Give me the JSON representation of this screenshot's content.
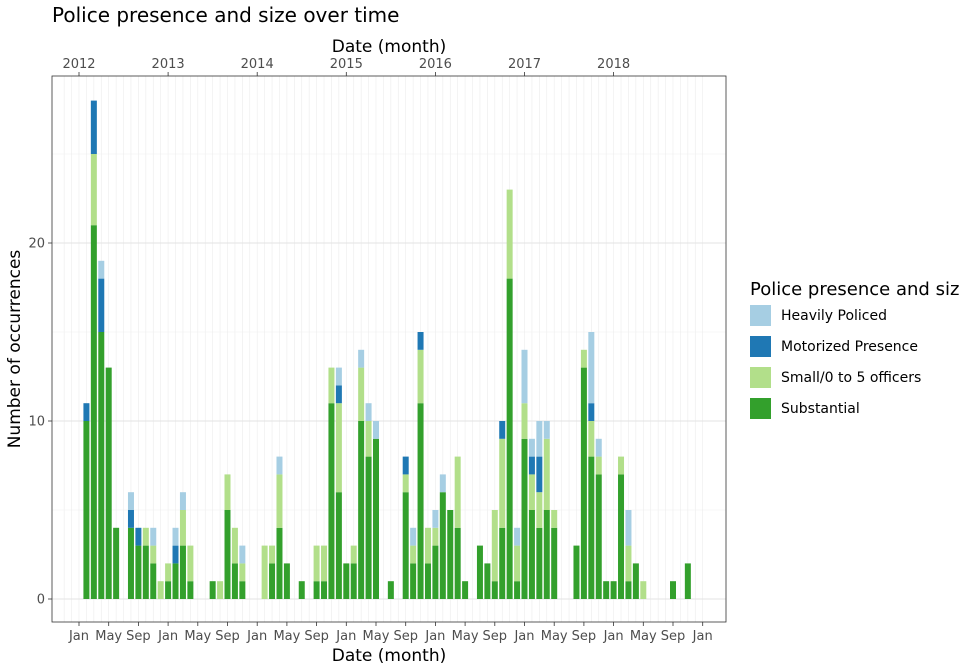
{
  "chart_data": {
    "type": "bar",
    "stacked": true,
    "title": "Police presence and size over time",
    "xlabel": "Date (month)",
    "xlabel_top": "Date (month)",
    "ylabel": "Number of occurrences",
    "ylim": [
      0,
      28
    ],
    "yticks": [
      0,
      10,
      20
    ],
    "x_range": [
      "2011-11",
      "2019-01"
    ],
    "top_axis_ticks": [
      {
        "month": "2012-01",
        "label": "2012"
      },
      {
        "month": "2013-01",
        "label": "2013"
      },
      {
        "month": "2014-01",
        "label": "2014"
      },
      {
        "month": "2015-01",
        "label": "2015"
      },
      {
        "month": "2016-01",
        "label": "2016"
      },
      {
        "month": "2017-01",
        "label": "2017"
      },
      {
        "month": "2018-01",
        "label": "2018"
      }
    ],
    "bottom_axis_ticks": [
      {
        "month": "2012-01",
        "label": "Jan"
      },
      {
        "month": "2012-05",
        "label": "May"
      },
      {
        "month": "2012-09",
        "label": "Sep"
      },
      {
        "month": "2013-01",
        "label": "Jan"
      },
      {
        "month": "2013-05",
        "label": "May"
      },
      {
        "month": "2013-09",
        "label": "Sep"
      },
      {
        "month": "2014-01",
        "label": "Jan"
      },
      {
        "month": "2014-05",
        "label": "May"
      },
      {
        "month": "2014-09",
        "label": "Sep"
      },
      {
        "month": "2015-01",
        "label": "Jan"
      },
      {
        "month": "2015-05",
        "label": "May"
      },
      {
        "month": "2015-09",
        "label": "Sep"
      },
      {
        "month": "2016-01",
        "label": "Jan"
      },
      {
        "month": "2016-05",
        "label": "May"
      },
      {
        "month": "2016-09",
        "label": "Sep"
      },
      {
        "month": "2017-01",
        "label": "Jan"
      },
      {
        "month": "2017-05",
        "label": "May"
      },
      {
        "month": "2017-09",
        "label": "Sep"
      },
      {
        "month": "2018-01",
        "label": "Jan"
      },
      {
        "month": "2018-05",
        "label": "May"
      },
      {
        "month": "2018-09",
        "label": "Sep"
      },
      {
        "month": "2019-01",
        "label": "Jan"
      }
    ],
    "legend": {
      "title": "Police presence and size",
      "position": "right"
    },
    "grid": true,
    "series": [
      {
        "name": "Heavily Policed",
        "color": "#A6CEE3"
      },
      {
        "name": "Motorized Presence",
        "color": "#1F78B4"
      },
      {
        "name": "Small/0 to 5 officers",
        "color": "#B2DF8A"
      },
      {
        "name": "Substantial",
        "color": "#33A02C"
      }
    ],
    "data": [
      {
        "x": "2012-02",
        "substantial": 10,
        "small": 0,
        "motorized": 1,
        "heavily": 0
      },
      {
        "x": "2012-03",
        "substantial": 21,
        "small": 4,
        "motorized": 3,
        "heavily": 0
      },
      {
        "x": "2012-04",
        "substantial": 15,
        "small": 0,
        "motorized": 3,
        "heavily": 1
      },
      {
        "x": "2012-05",
        "substantial": 13,
        "small": 0,
        "motorized": 0,
        "heavily": 0
      },
      {
        "x": "2012-06",
        "substantial": 4,
        "small": 0,
        "motorized": 0,
        "heavily": 0
      },
      {
        "x": "2012-08",
        "substantial": 4,
        "small": 0,
        "motorized": 1,
        "heavily": 1
      },
      {
        "x": "2012-09",
        "substantial": 3,
        "small": 0,
        "motorized": 1,
        "heavily": 0
      },
      {
        "x": "2012-10",
        "substantial": 3,
        "small": 1,
        "motorized": 0,
        "heavily": 0
      },
      {
        "x": "2012-11",
        "substantial": 2,
        "small": 1,
        "motorized": 0,
        "heavily": 1
      },
      {
        "x": "2012-12",
        "substantial": 0,
        "small": 1,
        "motorized": 0,
        "heavily": 0
      },
      {
        "x": "2013-01",
        "substantial": 1,
        "small": 1,
        "motorized": 0,
        "heavily": 0
      },
      {
        "x": "2013-02",
        "substantial": 2,
        "small": 0,
        "motorized": 1,
        "heavily": 1
      },
      {
        "x": "2013-03",
        "substantial": 3,
        "small": 2,
        "motorized": 0,
        "heavily": 1
      },
      {
        "x": "2013-04",
        "substantial": 1,
        "small": 2,
        "motorized": 0,
        "heavily": 0
      },
      {
        "x": "2013-07",
        "substantial": 1,
        "small": 0,
        "motorized": 0,
        "heavily": 0
      },
      {
        "x": "2013-08",
        "substantial": 0,
        "small": 1,
        "motorized": 0,
        "heavily": 0
      },
      {
        "x": "2013-09",
        "substantial": 5,
        "small": 2,
        "motorized": 0,
        "heavily": 0
      },
      {
        "x": "2013-10",
        "substantial": 2,
        "small": 2,
        "motorized": 0,
        "heavily": 0
      },
      {
        "x": "2013-11",
        "substantial": 1,
        "small": 1,
        "motorized": 0,
        "heavily": 1
      },
      {
        "x": "2014-02",
        "substantial": 0,
        "small": 3,
        "motorized": 0,
        "heavily": 0
      },
      {
        "x": "2014-03",
        "substantial": 2,
        "small": 1,
        "motorized": 0,
        "heavily": 0
      },
      {
        "x": "2014-04",
        "substantial": 4,
        "small": 3,
        "motorized": 0,
        "heavily": 1
      },
      {
        "x": "2014-05",
        "substantial": 2,
        "small": 0,
        "motorized": 0,
        "heavily": 0
      },
      {
        "x": "2014-07",
        "substantial": 1,
        "small": 0,
        "motorized": 0,
        "heavily": 0
      },
      {
        "x": "2014-09",
        "substantial": 1,
        "small": 2,
        "motorized": 0,
        "heavily": 0
      },
      {
        "x": "2014-10",
        "substantial": 1,
        "small": 2,
        "motorized": 0,
        "heavily": 0
      },
      {
        "x": "2014-11",
        "substantial": 11,
        "small": 2,
        "motorized": 0,
        "heavily": 0
      },
      {
        "x": "2014-12",
        "substantial": 6,
        "small": 5,
        "motorized": 1,
        "heavily": 1
      },
      {
        "x": "2015-01",
        "substantial": 2,
        "small": 0,
        "motorized": 0,
        "heavily": 0
      },
      {
        "x": "2015-02",
        "substantial": 2,
        "small": 1,
        "motorized": 0,
        "heavily": 0
      },
      {
        "x": "2015-03",
        "substantial": 10,
        "small": 3,
        "motorized": 0,
        "heavily": 1
      },
      {
        "x": "2015-04",
        "substantial": 8,
        "small": 2,
        "motorized": 0,
        "heavily": 1
      },
      {
        "x": "2015-05",
        "substantial": 9,
        "small": 0,
        "motorized": 0,
        "heavily": 1
      },
      {
        "x": "2015-07",
        "substantial": 1,
        "small": 0,
        "motorized": 0,
        "heavily": 0
      },
      {
        "x": "2015-09",
        "substantial": 6,
        "small": 1,
        "motorized": 1,
        "heavily": 0
      },
      {
        "x": "2015-10",
        "substantial": 2,
        "small": 1,
        "motorized": 0,
        "heavily": 1
      },
      {
        "x": "2015-11",
        "substantial": 11,
        "small": 3,
        "motorized": 1,
        "heavily": 0
      },
      {
        "x": "2015-12",
        "substantial": 2,
        "small": 2,
        "motorized": 0,
        "heavily": 0
      },
      {
        "x": "2016-01",
        "substantial": 3,
        "small": 1,
        "motorized": 0,
        "heavily": 1
      },
      {
        "x": "2016-02",
        "substantial": 6,
        "small": 0,
        "motorized": 0,
        "heavily": 1
      },
      {
        "x": "2016-03",
        "substantial": 5,
        "small": 0,
        "motorized": 0,
        "heavily": 0
      },
      {
        "x": "2016-04",
        "substantial": 4,
        "small": 4,
        "motorized": 0,
        "heavily": 0
      },
      {
        "x": "2016-05",
        "substantial": 1,
        "small": 0,
        "motorized": 0,
        "heavily": 0
      },
      {
        "x": "2016-07",
        "substantial": 3,
        "small": 0,
        "motorized": 0,
        "heavily": 0
      },
      {
        "x": "2016-08",
        "substantial": 2,
        "small": 0,
        "motorized": 0,
        "heavily": 0
      },
      {
        "x": "2016-09",
        "substantial": 1,
        "small": 4,
        "motorized": 0,
        "heavily": 0
      },
      {
        "x": "2016-10",
        "substantial": 4,
        "small": 5,
        "motorized": 1,
        "heavily": 0
      },
      {
        "x": "2016-11",
        "substantial": 18,
        "small": 5,
        "motorized": 0,
        "heavily": 0
      },
      {
        "x": "2016-12",
        "substantial": 1,
        "small": 2,
        "motorized": 0,
        "heavily": 1
      },
      {
        "x": "2017-01",
        "substantial": 9,
        "small": 2,
        "motorized": 0,
        "heavily": 3
      },
      {
        "x": "2017-02",
        "substantial": 5,
        "small": 2,
        "motorized": 1,
        "heavily": 1
      },
      {
        "x": "2017-03",
        "substantial": 4,
        "small": 2,
        "motorized": 2,
        "heavily": 2
      },
      {
        "x": "2017-04",
        "substantial": 5,
        "small": 4,
        "motorized": 0,
        "heavily": 1
      },
      {
        "x": "2017-05",
        "substantial": 4,
        "small": 1,
        "motorized": 0,
        "heavily": 0
      },
      {
        "x": "2017-08",
        "substantial": 3,
        "small": 0,
        "motorized": 0,
        "heavily": 0
      },
      {
        "x": "2017-09",
        "substantial": 13,
        "small": 1,
        "motorized": 0,
        "heavily": 0
      },
      {
        "x": "2017-10",
        "substantial": 8,
        "small": 2,
        "motorized": 1,
        "heavily": 4
      },
      {
        "x": "2017-11",
        "substantial": 7,
        "small": 1,
        "motorized": 0,
        "heavily": 1
      },
      {
        "x": "2017-12",
        "substantial": 1,
        "small": 0,
        "motorized": 0,
        "heavily": 0
      },
      {
        "x": "2018-01",
        "substantial": 1,
        "small": 0,
        "motorized": 0,
        "heavily": 0
      },
      {
        "x": "2018-02",
        "substantial": 7,
        "small": 1,
        "motorized": 0,
        "heavily": 0
      },
      {
        "x": "2018-03",
        "substantial": 1,
        "small": 2,
        "motorized": 0,
        "heavily": 2
      },
      {
        "x": "2018-04",
        "substantial": 2,
        "small": 0,
        "motorized": 0,
        "heavily": 0
      },
      {
        "x": "2018-05",
        "substantial": 0,
        "small": 1,
        "motorized": 0,
        "heavily": 0
      },
      {
        "x": "2018-09",
        "substantial": 1,
        "small": 0,
        "motorized": 0,
        "heavily": 0
      },
      {
        "x": "2018-11",
        "substantial": 2,
        "small": 0,
        "motorized": 0,
        "heavily": 0
      }
    ]
  }
}
